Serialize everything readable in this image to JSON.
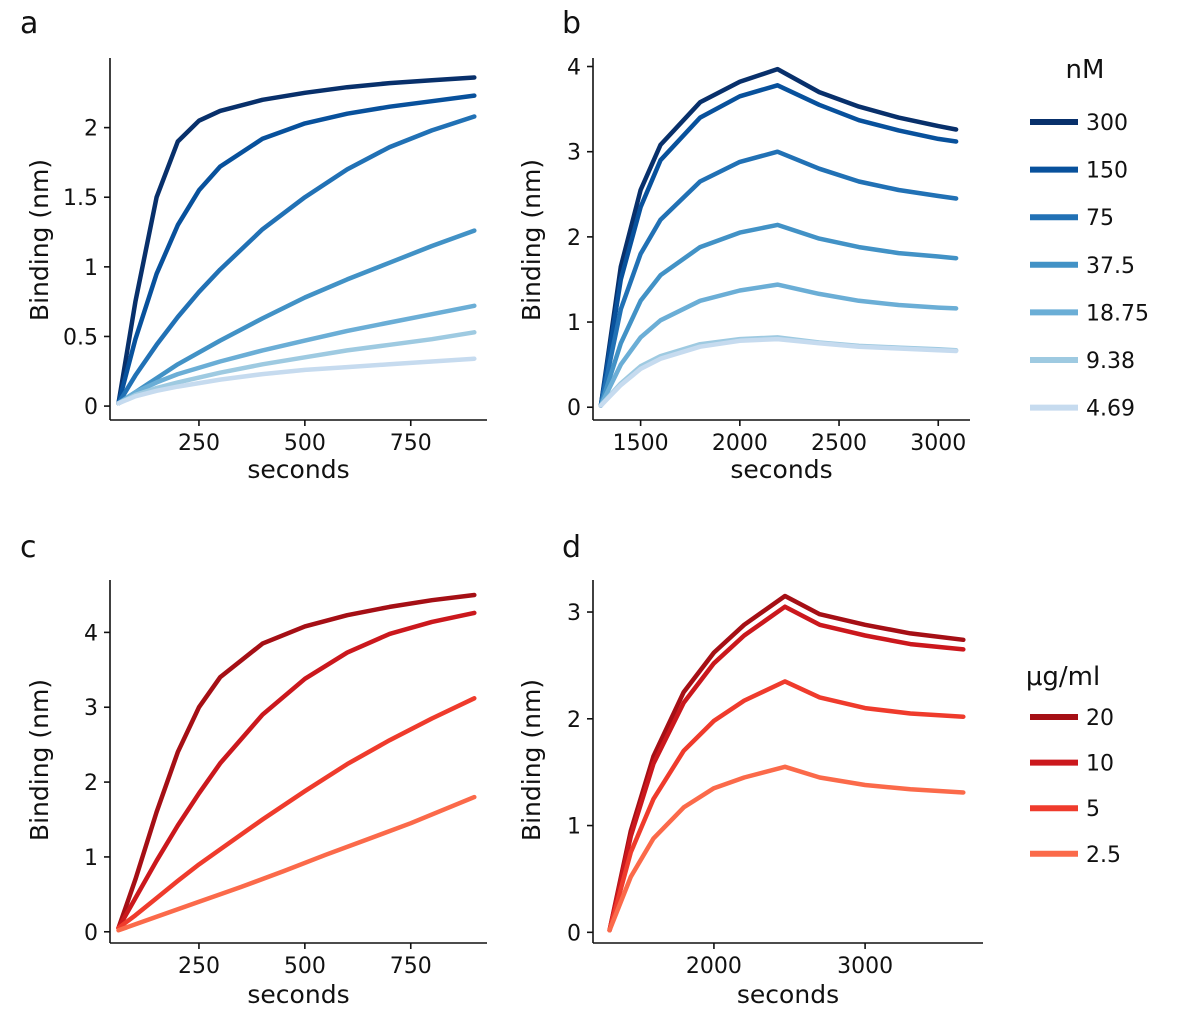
{
  "chart_data": [
    {
      "panel": "a",
      "type": "line",
      "xlabel": "seconds",
      "ylabel": "Binding (nm)",
      "xlim": [
        40,
        930
      ],
      "ylim": [
        -0.1,
        2.5
      ],
      "xticks": [
        250,
        500,
        750
      ],
      "xtick_labels": [
        "250",
        "500",
        "750"
      ],
      "yticks": [
        0,
        0.5,
        1,
        1.5,
        2
      ],
      "ytick_labels": [
        "0",
        "0.5",
        "1",
        "1.5",
        "2"
      ],
      "series": [
        {
          "name": "300",
          "color": "#08306b",
          "x": [
            60,
            100,
            150,
            200,
            250,
            300,
            400,
            500,
            600,
            700,
            800,
            900
          ],
          "y": [
            0.02,
            0.75,
            1.5,
            1.9,
            2.05,
            2.12,
            2.2,
            2.25,
            2.29,
            2.32,
            2.34,
            2.36
          ]
        },
        {
          "name": "150",
          "color": "#08519c",
          "x": [
            60,
            100,
            150,
            200,
            250,
            300,
            400,
            500,
            600,
            700,
            800,
            900
          ],
          "y": [
            0.02,
            0.48,
            0.95,
            1.3,
            1.55,
            1.72,
            1.92,
            2.03,
            2.1,
            2.15,
            2.19,
            2.23
          ]
        },
        {
          "name": "75",
          "color": "#2171b5",
          "x": [
            60,
            100,
            150,
            200,
            250,
            300,
            400,
            500,
            600,
            700,
            800,
            900
          ],
          "y": [
            0.02,
            0.22,
            0.44,
            0.64,
            0.82,
            0.98,
            1.27,
            1.5,
            1.7,
            1.86,
            1.98,
            2.08
          ]
        },
        {
          "name": "37.5",
          "color": "#4292c6",
          "x": [
            60,
            100,
            150,
            200,
            300,
            400,
            500,
            600,
            700,
            800,
            900
          ],
          "y": [
            0.02,
            0.1,
            0.2,
            0.3,
            0.47,
            0.63,
            0.78,
            0.91,
            1.03,
            1.15,
            1.26
          ]
        },
        {
          "name": "18.75",
          "color": "#6baed6",
          "x": [
            60,
            100,
            150,
            200,
            300,
            400,
            500,
            600,
            700,
            800,
            900
          ],
          "y": [
            0.02,
            0.1,
            0.17,
            0.23,
            0.32,
            0.4,
            0.47,
            0.54,
            0.6,
            0.66,
            0.72
          ]
        },
        {
          "name": "9.38",
          "color": "#9ecae1",
          "x": [
            60,
            100,
            150,
            200,
            300,
            400,
            500,
            600,
            700,
            800,
            900
          ],
          "y": [
            0.02,
            0.08,
            0.13,
            0.17,
            0.24,
            0.3,
            0.35,
            0.4,
            0.44,
            0.48,
            0.53
          ]
        },
        {
          "name": "4.69",
          "color": "#c6dbef",
          "x": [
            60,
            100,
            150,
            200,
            300,
            400,
            500,
            600,
            700,
            800,
            900
          ],
          "y": [
            0.02,
            0.07,
            0.11,
            0.14,
            0.19,
            0.23,
            0.26,
            0.28,
            0.3,
            0.32,
            0.34
          ]
        }
      ]
    },
    {
      "panel": "b",
      "type": "line",
      "xlabel": "seconds",
      "ylabel": "Binding (nm)",
      "xlim": [
        1260,
        3160
      ],
      "ylim": [
        -0.15,
        4.1
      ],
      "xticks": [
        1500,
        2000,
        2500,
        3000
      ],
      "xtick_labels": [
        "1500",
        "2000",
        "2500",
        "3000"
      ],
      "yticks": [
        0,
        1,
        2,
        3,
        4
      ],
      "ytick_labels": [
        "0",
        "1",
        "2",
        "3",
        "4"
      ],
      "legend_title": "nM",
      "series": [
        {
          "name": "300",
          "color": "#08306b",
          "x": [
            1300,
            1400,
            1500,
            1600,
            1800,
            2000,
            2190,
            2400,
            2600,
            2800,
            3000,
            3090
          ],
          "y": [
            0.02,
            1.65,
            2.55,
            3.08,
            3.58,
            3.82,
            3.97,
            3.7,
            3.53,
            3.4,
            3.3,
            3.26
          ]
        },
        {
          "name": "150",
          "color": "#08519c",
          "x": [
            1300,
            1400,
            1500,
            1600,
            1800,
            2000,
            2190,
            2400,
            2600,
            2800,
            3000,
            3090
          ],
          "y": [
            0.02,
            1.5,
            2.35,
            2.9,
            3.4,
            3.65,
            3.78,
            3.55,
            3.37,
            3.25,
            3.15,
            3.12
          ]
        },
        {
          "name": "75",
          "color": "#2171b5",
          "x": [
            1300,
            1400,
            1500,
            1600,
            1800,
            2000,
            2190,
            2400,
            2600,
            2800,
            3000,
            3090
          ],
          "y": [
            0.02,
            1.15,
            1.8,
            2.2,
            2.65,
            2.88,
            3.0,
            2.8,
            2.65,
            2.55,
            2.48,
            2.45
          ]
        },
        {
          "name": "37.5",
          "color": "#4292c6",
          "x": [
            1300,
            1400,
            1500,
            1600,
            1800,
            2000,
            2190,
            2400,
            2600,
            2800,
            3000,
            3090
          ],
          "y": [
            0.02,
            0.75,
            1.25,
            1.55,
            1.88,
            2.05,
            2.14,
            1.98,
            1.88,
            1.81,
            1.77,
            1.75
          ]
        },
        {
          "name": "18.75",
          "color": "#6baed6",
          "x": [
            1300,
            1400,
            1500,
            1600,
            1800,
            2000,
            2190,
            2400,
            2600,
            2800,
            3000,
            3090
          ],
          "y": [
            0.02,
            0.5,
            0.82,
            1.02,
            1.25,
            1.37,
            1.44,
            1.33,
            1.25,
            1.2,
            1.17,
            1.16
          ]
        },
        {
          "name": "9.38",
          "color": "#9ecae1",
          "x": [
            1300,
            1400,
            1500,
            1600,
            1800,
            2000,
            2190,
            2400,
            2600,
            2800,
            3000,
            3090
          ],
          "y": [
            0.02,
            0.28,
            0.48,
            0.6,
            0.74,
            0.8,
            0.82,
            0.76,
            0.72,
            0.7,
            0.68,
            0.67
          ]
        },
        {
          "name": "4.69",
          "color": "#c6dbef",
          "x": [
            1300,
            1400,
            1500,
            1600,
            1800,
            2000,
            2190,
            2400,
            2600,
            2800,
            3000,
            3090
          ],
          "y": [
            0.02,
            0.26,
            0.45,
            0.57,
            0.71,
            0.78,
            0.8,
            0.75,
            0.71,
            0.69,
            0.67,
            0.66
          ]
        }
      ]
    },
    {
      "panel": "c",
      "type": "line",
      "xlabel": "seconds",
      "ylabel": "Binding (nm)",
      "xlim": [
        40,
        930
      ],
      "ylim": [
        -0.15,
        4.7
      ],
      "xticks": [
        250,
        500,
        750
      ],
      "xtick_labels": [
        "250",
        "500",
        "750"
      ],
      "yticks": [
        0,
        1,
        2,
        3,
        4
      ],
      "ytick_labels": [
        "0",
        "1",
        "2",
        "3",
        "4"
      ],
      "series": [
        {
          "name": "20",
          "color": "#a50f15",
          "x": [
            60,
            100,
            150,
            200,
            250,
            300,
            400,
            500,
            600,
            700,
            800,
            900
          ],
          "y": [
            0.05,
            0.7,
            1.6,
            2.4,
            3.0,
            3.4,
            3.85,
            4.08,
            4.23,
            4.34,
            4.43,
            4.5
          ]
        },
        {
          "name": "10",
          "color": "#cb181d",
          "x": [
            60,
            100,
            150,
            200,
            250,
            300,
            400,
            500,
            600,
            700,
            800,
            900
          ],
          "y": [
            0.05,
            0.45,
            0.95,
            1.42,
            1.85,
            2.25,
            2.9,
            3.38,
            3.73,
            3.98,
            4.14,
            4.26
          ]
        },
        {
          "name": "5",
          "color": "#ef3b2c",
          "x": [
            60,
            100,
            150,
            200,
            250,
            300,
            400,
            500,
            600,
            700,
            800,
            900
          ],
          "y": [
            0.05,
            0.22,
            0.45,
            0.68,
            0.9,
            1.1,
            1.5,
            1.88,
            2.24,
            2.56,
            2.85,
            3.12
          ]
        },
        {
          "name": "2.5",
          "color": "#fb6a4a",
          "x": [
            60,
            150,
            250,
            350,
            450,
            550,
            650,
            750,
            900
          ],
          "y": [
            0.02,
            0.2,
            0.4,
            0.6,
            0.81,
            1.03,
            1.24,
            1.45,
            1.8
          ]
        }
      ]
    },
    {
      "panel": "d",
      "type": "line",
      "xlabel": "seconds",
      "ylabel": "Binding (nm)",
      "xlim": [
        1200,
        3780
      ],
      "ylim": [
        -0.1,
        3.3
      ],
      "xticks": [
        2000,
        3000
      ],
      "xtick_labels": [
        "2000",
        "3000"
      ],
      "yticks": [
        0,
        1,
        2,
        3
      ],
      "ytick_labels": [
        "0",
        "1",
        "2",
        "3"
      ],
      "legend_title": "μg/ml",
      "series": [
        {
          "name": "20",
          "color": "#a50f15",
          "x": [
            1310,
            1450,
            1600,
            1800,
            2000,
            2200,
            2470,
            2700,
            3000,
            3300,
            3650
          ],
          "y": [
            0.02,
            0.95,
            1.65,
            2.25,
            2.62,
            2.88,
            3.15,
            2.98,
            2.88,
            2.8,
            2.74
          ]
        },
        {
          "name": "10",
          "color": "#cb181d",
          "x": [
            1310,
            1450,
            1600,
            1800,
            2000,
            2200,
            2470,
            2700,
            3000,
            3300,
            3650
          ],
          "y": [
            0.02,
            0.9,
            1.58,
            2.15,
            2.52,
            2.78,
            3.05,
            2.88,
            2.78,
            2.7,
            2.65
          ]
        },
        {
          "name": "5",
          "color": "#ef3b2c",
          "x": [
            1310,
            1450,
            1600,
            1800,
            2000,
            2200,
            2470,
            2700,
            3000,
            3300,
            3650
          ],
          "y": [
            0.02,
            0.75,
            1.25,
            1.7,
            1.98,
            2.17,
            2.35,
            2.2,
            2.1,
            2.05,
            2.02
          ]
        },
        {
          "name": "2.5",
          "color": "#fb6a4a",
          "x": [
            1310,
            1450,
            1600,
            1800,
            2000,
            2200,
            2470,
            2700,
            3000,
            3300,
            3650
          ],
          "y": [
            0.02,
            0.52,
            0.88,
            1.17,
            1.35,
            1.45,
            1.55,
            1.45,
            1.38,
            1.34,
            1.31
          ]
        }
      ]
    }
  ]
}
